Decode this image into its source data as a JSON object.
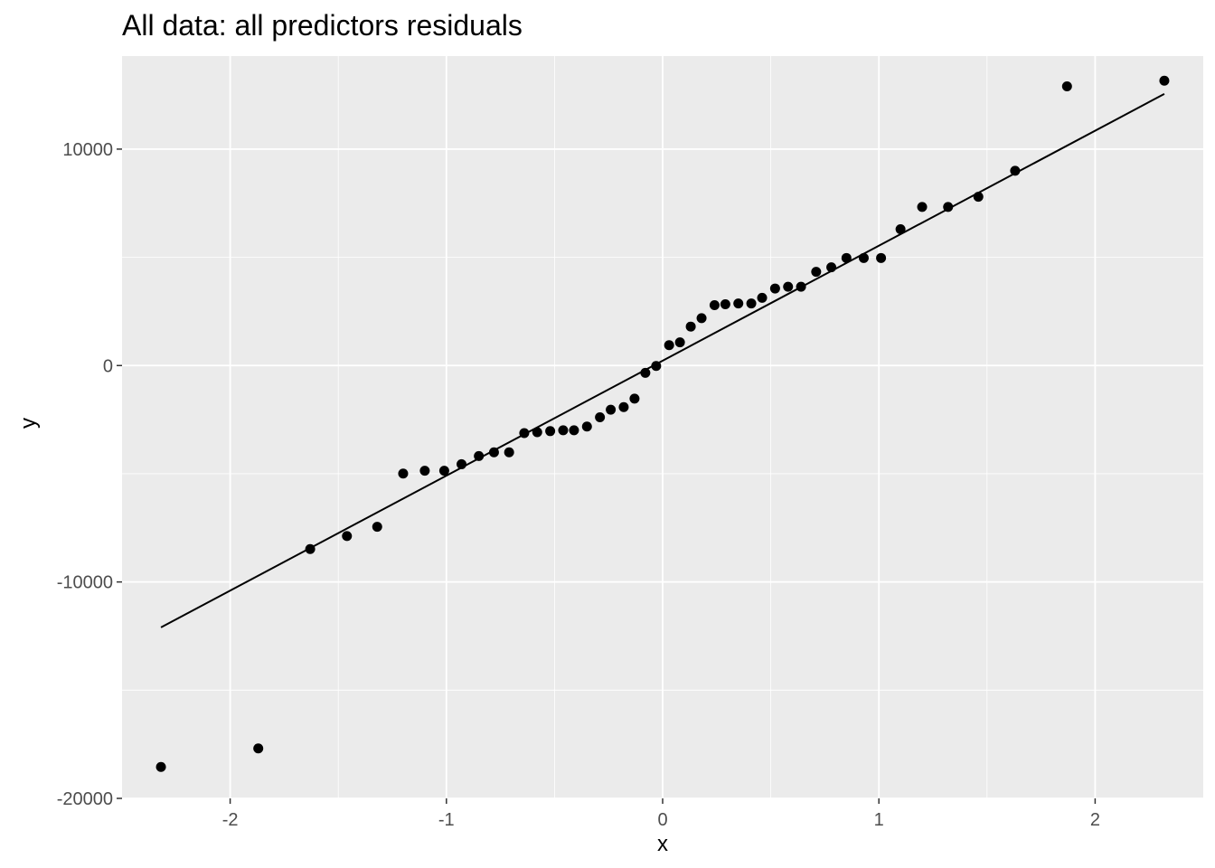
{
  "chart_data": {
    "type": "scatter",
    "title": "All data: all predictors residuals",
    "xlabel": "x",
    "ylabel": "y",
    "xlim": [
      -2.5,
      2.5
    ],
    "ylim": [
      -20000,
      14300
    ],
    "grid": true,
    "x_ticks": [
      -2,
      -1,
      0,
      1,
      2
    ],
    "x_tick_labels": [
      "-2",
      "-1",
      "0",
      "1",
      "2"
    ],
    "y_ticks": [
      -20000,
      -10000,
      0,
      10000
    ],
    "y_tick_labels": [
      "-20000",
      "-10000",
      "0",
      "10000"
    ],
    "points": [
      {
        "x": -2.32,
        "y": -18550
      },
      {
        "x": -1.87,
        "y": -17690
      },
      {
        "x": -1.63,
        "y": -8480
      },
      {
        "x": -1.46,
        "y": -7880
      },
      {
        "x": -1.32,
        "y": -7450
      },
      {
        "x": -1.2,
        "y": -4990
      },
      {
        "x": -1.1,
        "y": -4860
      },
      {
        "x": -1.01,
        "y": -4860
      },
      {
        "x": -0.93,
        "y": -4560
      },
      {
        "x": -0.85,
        "y": -4180
      },
      {
        "x": -0.78,
        "y": -4010
      },
      {
        "x": -0.71,
        "y": -4010
      },
      {
        "x": -0.64,
        "y": -3120
      },
      {
        "x": -0.58,
        "y": -3080
      },
      {
        "x": -0.52,
        "y": -3030
      },
      {
        "x": -0.46,
        "y": -2990
      },
      {
        "x": -0.41,
        "y": -2990
      },
      {
        "x": -0.35,
        "y": -2820
      },
      {
        "x": -0.29,
        "y": -2390
      },
      {
        "x": -0.24,
        "y": -2040
      },
      {
        "x": -0.18,
        "y": -1920
      },
      {
        "x": -0.13,
        "y": -1530
      },
      {
        "x": -0.08,
        "y": -340
      },
      {
        "x": -0.03,
        "y": -20
      },
      {
        "x": 0.03,
        "y": 940
      },
      {
        "x": 0.08,
        "y": 1070
      },
      {
        "x": 0.13,
        "y": 1800
      },
      {
        "x": 0.18,
        "y": 2190
      },
      {
        "x": 0.24,
        "y": 2790
      },
      {
        "x": 0.29,
        "y": 2830
      },
      {
        "x": 0.35,
        "y": 2870
      },
      {
        "x": 0.41,
        "y": 2870
      },
      {
        "x": 0.46,
        "y": 3130
      },
      {
        "x": 0.52,
        "y": 3560
      },
      {
        "x": 0.58,
        "y": 3640
      },
      {
        "x": 0.64,
        "y": 3640
      },
      {
        "x": 0.71,
        "y": 4330
      },
      {
        "x": 0.78,
        "y": 4540
      },
      {
        "x": 0.85,
        "y": 4970
      },
      {
        "x": 0.93,
        "y": 4970
      },
      {
        "x": 1.01,
        "y": 4970
      },
      {
        "x": 1.1,
        "y": 6300
      },
      {
        "x": 1.2,
        "y": 7330
      },
      {
        "x": 1.32,
        "y": 7330
      },
      {
        "x": 1.46,
        "y": 7800
      },
      {
        "x": 1.63,
        "y": 9000
      },
      {
        "x": 1.87,
        "y": 12900
      },
      {
        "x": 2.32,
        "y": 13160
      }
    ],
    "line": {
      "x": [
        -2.32,
        2.32
      ],
      "y": [
        -12100,
        12550
      ]
    }
  }
}
